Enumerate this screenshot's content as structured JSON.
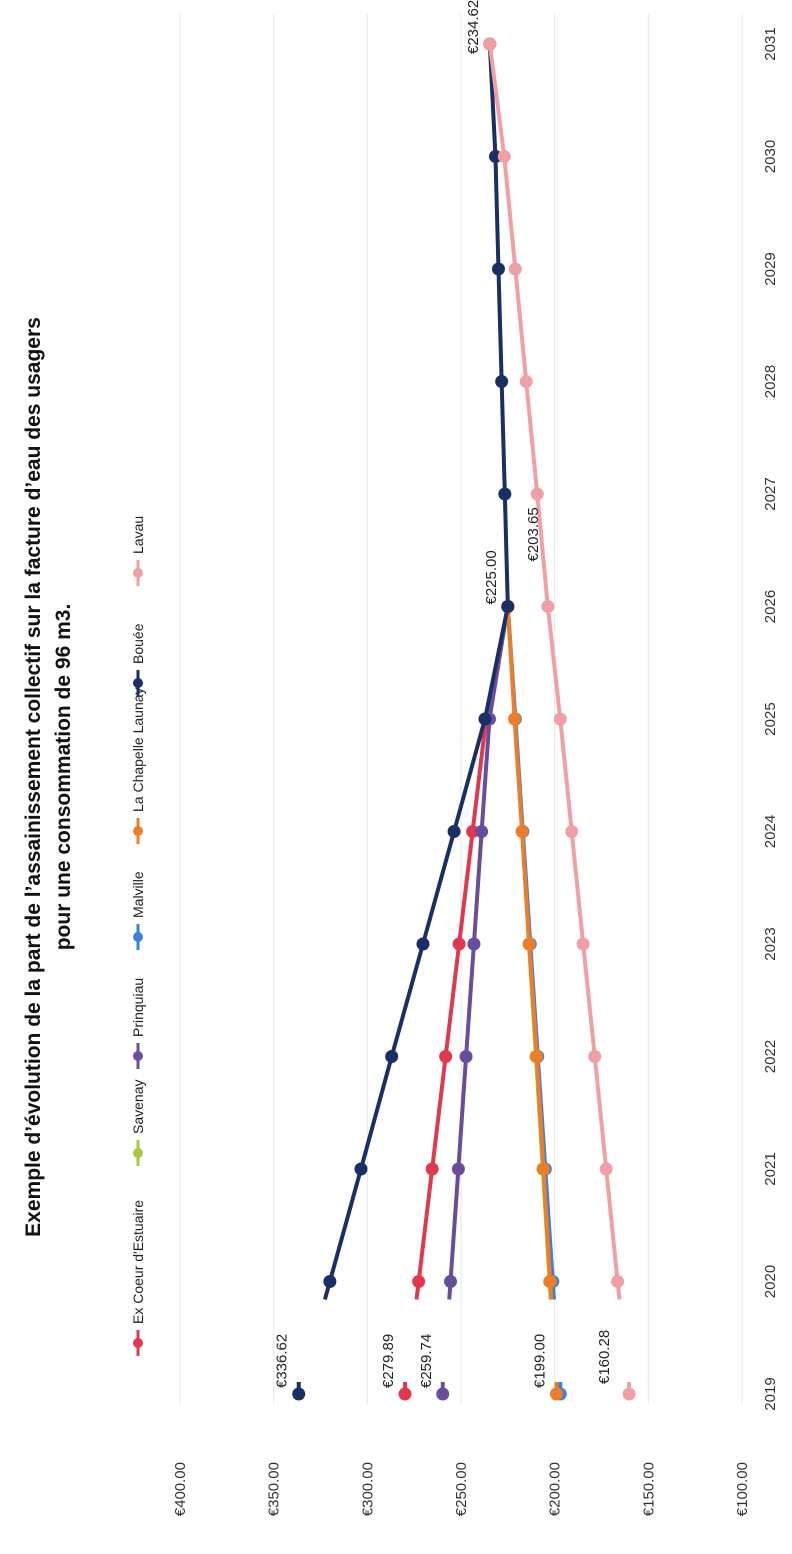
{
  "chart_data": {
    "type": "line",
    "title": [
      "Exemple d’évolution de la part de l’assainissement collectif sur la facture d’eau des usagers",
      "pour une consommation de 96 m3."
    ],
    "xlabel": "",
    "ylabel": "",
    "ylim": [
      100,
      400
    ],
    "y_ticks": [
      "€400.00",
      "€350.00",
      "€300.00",
      "€250.00",
      "€200.00",
      "€150.00",
      "€100.00"
    ],
    "y_tick_values": [
      400,
      350,
      300,
      250,
      200,
      150,
      100
    ],
    "categories": [
      "2019",
      "2020",
      "2021",
      "2022",
      "2023",
      "2024",
      "2025",
      "2026",
      "2027",
      "2028",
      "2029",
      "2030",
      "2031"
    ],
    "grid": true,
    "legend_position": "top",
    "series": [
      {
        "name": "Ex Coeur d'Estuaire",
        "color": "#e0394f",
        "values": [
          279.89,
          272.6,
          265.4,
          258.2,
          251.0,
          243.8,
          236.6,
          225.0,
          null,
          null,
          null,
          null,
          null
        ]
      },
      {
        "name": "Savenay",
        "color": "#a6c83a",
        "values": [
          199.0,
          202.7,
          206.3,
          210.0,
          213.7,
          217.3,
          221.0,
          225.0,
          null,
          null,
          null,
          null,
          null
        ]
      },
      {
        "name": "Prinquiau",
        "color": "#6a4c9c",
        "values": [
          259.74,
          255.6,
          251.4,
          247.3,
          243.1,
          239.0,
          234.8,
          225.0,
          null,
          null,
          null,
          null,
          null
        ]
      },
      {
        "name": "Malville",
        "color": "#3b82d6",
        "values": [
          197.0,
          201.0,
          205.0,
          209.0,
          213.0,
          217.0,
          221.0,
          225.0,
          null,
          null,
          null,
          null,
          null
        ]
      },
      {
        "name": "La Chapelle Launay",
        "color": "#ee7d2a",
        "values": [
          199.0,
          202.4,
          206.0,
          209.6,
          213.6,
          217.4,
          221.4,
          225.0,
          null,
          null,
          null,
          null,
          null
        ]
      },
      {
        "name": "Bouée",
        "color": "#1a2f63",
        "values": [
          336.62,
          320.0,
          303.4,
          287.0,
          270.3,
          253.7,
          237.2,
          225.0,
          226.6,
          228.3,
          230.0,
          231.6,
          234.62
        ]
      },
      {
        "name": "Lavau",
        "color": "#f0a0a4",
        "values": [
          160.28,
          166.4,
          172.5,
          178.6,
          184.8,
          190.9,
          197.0,
          203.65,
          209.3,
          215.2,
          221.0,
          226.9,
          234.62
        ]
      }
    ],
    "annotations": [
      {
        "text": "€336.62",
        "year": "2019",
        "value": 336.62,
        "color": "#1a2f63"
      },
      {
        "text": "€279.89",
        "year": "2019",
        "value": 279.89,
        "color": "#e0394f"
      },
      {
        "text": "€259.74",
        "year": "2019",
        "value": 259.74,
        "color": "#6a4c9c"
      },
      {
        "text": "€199.00",
        "year": "2019",
        "value": 199.0,
        "color": "#ee7d2a"
      },
      {
        "text": "€160.28",
        "year": "2019",
        "value": 160.28,
        "color": "#f0a0a4"
      },
      {
        "text": "€225.00",
        "year": "2026",
        "value": 225.0,
        "color": "#1a2f63"
      },
      {
        "text": "€203.65",
        "year": "2026",
        "value": 203.65,
        "color": "#f0a0a4"
      },
      {
        "text": "€234.62",
        "year": "2031",
        "value": 234.62,
        "color": "#1a2f63"
      }
    ]
  }
}
